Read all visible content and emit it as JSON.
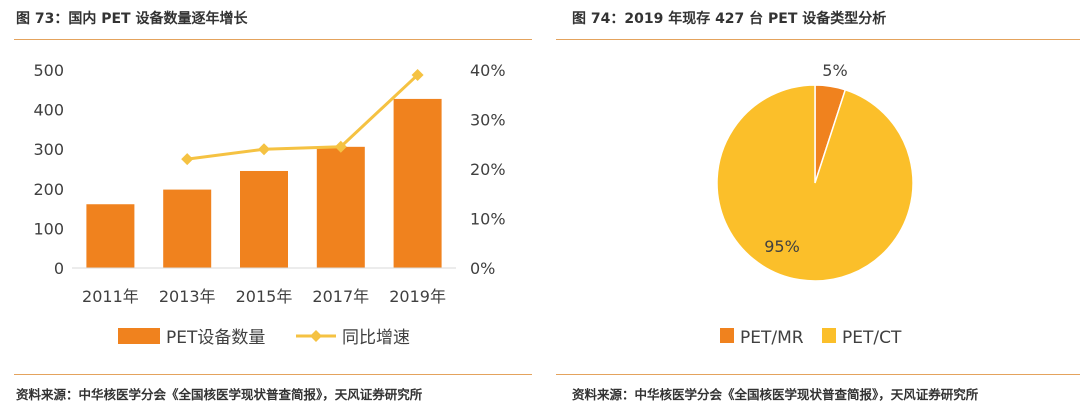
{
  "left": {
    "title": "图 73：国内 PET 设备数量逐年增长",
    "source": "资料来源：中华核医学分会《全国核医学现状普查简报》，天风证券研究所"
  },
  "right": {
    "title": "图 74：2019 年现存 427 台 PET 设备类型分析",
    "source": "资料来源：中华核医学分会《全国核医学现状普查简报》，天风证券研究所"
  },
  "chart_data": [
    {
      "type": "bar",
      "categories": [
        "2011年",
        "2013年",
        "2015年",
        "2017年",
        "2019年"
      ],
      "series": [
        {
          "name": "PET设备数量",
          "type": "bar",
          "axis": "left",
          "color": "#f0821e",
          "values": [
            161,
            198,
            245,
            306,
            427
          ]
        },
        {
          "name": "同比增速",
          "type": "line",
          "axis": "right",
          "color": "#f5c242",
          "values": [
            null,
            0.22,
            0.24,
            0.245,
            0.39
          ]
        }
      ],
      "ylim": [
        0,
        500
      ],
      "yticks": [
        "0",
        "100",
        "200",
        "300",
        "400",
        "500"
      ],
      "y2lim": [
        0,
        0.4
      ],
      "y2ticks": [
        "0%",
        "10%",
        "20%",
        "30%",
        "40%"
      ],
      "legend": "bottom",
      "grid": false
    },
    {
      "type": "pie",
      "labels": [
        "PET/MR",
        "PET/CT"
      ],
      "values": [
        5,
        95
      ],
      "value_labels": [
        "5%",
        "95%"
      ],
      "colors": [
        "#f0821e",
        "#fbbf2a"
      ],
      "legend": "bottom"
    }
  ]
}
